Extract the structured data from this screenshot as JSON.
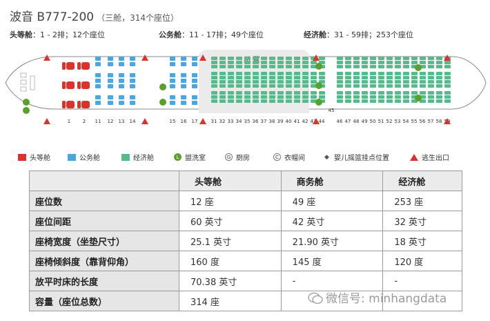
{
  "header": {
    "title": "波音 B777-200",
    "subtitle": "（三舱，314个座位）"
  },
  "summary": [
    {
      "cabin": "头等舱",
      "detail": "1 - 2排；12个座位"
    },
    {
      "cabin": "公务舱",
      "detail": "11 - 17排；49个座位"
    },
    {
      "cabin": "经济舱",
      "detail": "31 - 59排；253个座位"
    }
  ],
  "seatmap": {
    "wing_label": "机 翼",
    "first_rows": [
      "1",
      "2"
    ],
    "business_rows": [
      "11",
      "12",
      "13",
      "14",
      "15",
      "16",
      "17"
    ],
    "economy_rows": [
      "31",
      "32",
      "33",
      "34",
      "35",
      "36",
      "37",
      "38",
      "39",
      "40",
      "41",
      "42",
      "43",
      "44",
      "46",
      "47",
      "48",
      "49",
      "50",
      "51",
      "52",
      "53",
      "54",
      "55",
      "56",
      "57",
      "58",
      "59"
    ],
    "row45_label": "45",
    "colors": {
      "first": "#d9342b",
      "business": "#4aa6dc",
      "economy": "#55bb8a",
      "lavatory": "#5aa02c",
      "exit": "#d9342b",
      "outline": "#888888"
    }
  },
  "legend": [
    {
      "icon": "first-class-swatch",
      "label": "头等舱"
    },
    {
      "icon": "business-class-swatch",
      "label": "公务舱"
    },
    {
      "icon": "economy-class-swatch",
      "label": "经济舱"
    },
    {
      "icon": "lavatory-icon",
      "symbol": "L",
      "label": "盥洗室"
    },
    {
      "icon": "galley-icon",
      "symbol": "G",
      "label": "厨房"
    },
    {
      "icon": "closet-icon",
      "symbol": "C",
      "label": "衣帽间"
    },
    {
      "icon": "bassinet-icon",
      "symbol": "◆",
      "label": "婴儿摇篮挂点位置"
    },
    {
      "icon": "exit-icon",
      "label": "逃生出口"
    }
  ],
  "table": {
    "headers": [
      "",
      "头等舱",
      "商务舱",
      "经济舱"
    ],
    "rows": [
      [
        "座位数",
        "12 座",
        "49 座",
        "253 座"
      ],
      [
        "座位间距",
        "60 英寸",
        "42 英寸",
        "32 英寸"
      ],
      [
        "座椅宽度（坐垫尺寸）",
        "25.1 英寸",
        "21.90 英寸",
        "18 英寸"
      ],
      [
        "座椅倾斜度（靠背仰角）",
        "160 度",
        "145 度",
        "120 度"
      ],
      [
        "放平时床的长度",
        "70.38 英寸",
        "-",
        "-"
      ],
      [
        "容量（座位总数）",
        "314 座",
        "",
        ""
      ]
    ]
  },
  "watermark": "微信号: minhangdata"
}
